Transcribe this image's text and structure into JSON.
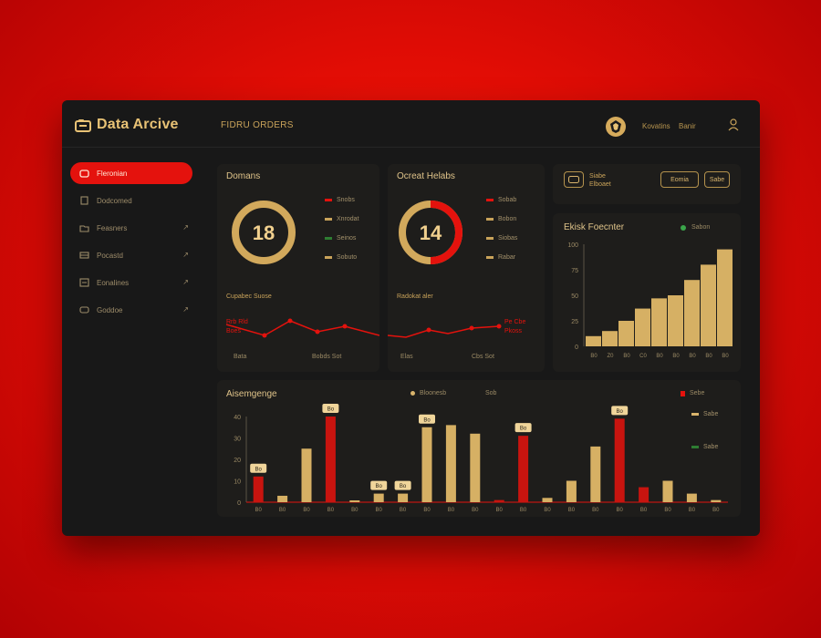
{
  "app": {
    "name": "Data Arcive",
    "header_title": "FIDRU ORDERS"
  },
  "header": {
    "user": "Kovatins",
    "user_role": "Banir"
  },
  "sidebar": {
    "items": [
      {
        "label": "Fleronian",
        "icon": "home-icon",
        "active": true
      },
      {
        "label": "Dodcomed",
        "icon": "document-icon",
        "active": false
      },
      {
        "label": "Feasners",
        "icon": "folder-icon",
        "active": false
      },
      {
        "label": "Pocastd",
        "icon": "layers-icon",
        "active": false
      },
      {
        "label": "Eonalines",
        "icon": "archive-icon",
        "active": false
      },
      {
        "label": "Goddoe",
        "icon": "grid-icon",
        "active": false
      }
    ]
  },
  "card1": {
    "title": "Domans",
    "donut_value": "18",
    "legend": [
      {
        "label": "Snobs",
        "color": "#e4120d"
      },
      {
        "label": "Xnrodat",
        "color": "#c9a35a"
      },
      {
        "label": "Seinos",
        "color": "#2e7d32"
      },
      {
        "label": "Sobuto",
        "color": "#c9a35a"
      }
    ],
    "subtitle": "Cupabec Suose",
    "line_label_top": "Rrb Rld",
    "line_label_mid": "Boes",
    "footer_left": "Bata",
    "footer_right": "Bobds Sot"
  },
  "card2": {
    "title": "Ocreat Helabs",
    "donut_value": "14",
    "legend": [
      {
        "label": "Sobab",
        "color": "#e4120d"
      },
      {
        "label": "Bobon",
        "color": "#c9a35a"
      },
      {
        "label": "Siobas",
        "color": "#c9a35a"
      },
      {
        "label": "Rabar",
        "color": "#c9a35a"
      }
    ],
    "subtitle": "Radokat aler",
    "line_label_top": "Pe Cbe",
    "line_label_mid": "Pkoss",
    "footer_left": "Elas",
    "footer_right": "Cbs Sot"
  },
  "filter_bar": {
    "select_label": "Siabe",
    "select_sub": "Elboaet",
    "button1": "Eomia",
    "button2": "Sabe"
  },
  "bar_card": {
    "title": "Ekisk Foecnter",
    "legend_label": "Sabon",
    "chart_data": {
      "type": "bar",
      "categories": [
        "B0",
        "Z0",
        "B0",
        "C0",
        "B0",
        "B0",
        "B0",
        "B0",
        "B0"
      ],
      "values": [
        10,
        15,
        25,
        37,
        47,
        50,
        65,
        80,
        95
      ],
      "ylim": [
        0,
        100
      ],
      "y_ticks": [
        "0",
        "25",
        "50",
        "75",
        "100"
      ]
    }
  },
  "bottom_card": {
    "title": "Aisemgenge",
    "legend_top": "Bloonesb",
    "legend_top2": "Sob",
    "legend_right": "Sebe",
    "legend_r1": "Sabe",
    "legend_r2": "Sabe",
    "chart_data": {
      "type": "bar",
      "categories": [
        "B0",
        "B0",
        "B0",
        "B0",
        "B0",
        "B0",
        "B0",
        "B0",
        "B0",
        "B0",
        "B0",
        "B0",
        "B0",
        "B0",
        "B0",
        "B0",
        "B0",
        "B0",
        "B0",
        "B0"
      ],
      "values": [
        12,
        3,
        25,
        40,
        0,
        4,
        4,
        35,
        36,
        32,
        1,
        31,
        2,
        10,
        26,
        39,
        7,
        10,
        4,
        1
      ],
      "colors": [
        "red",
        "gold",
        "gold",
        "red",
        "gold",
        "gold",
        "gold",
        "gold",
        "gold",
        "gold",
        "red",
        "red",
        "gold",
        "gold",
        "gold",
        "red",
        "red",
        "gold",
        "gold",
        "gold"
      ],
      "labels": [
        "Bo",
        "",
        "",
        "Bo",
        "",
        "Bo",
        "Bo",
        "Bo",
        "",
        "",
        "",
        "Bo",
        "",
        "",
        "",
        "Bo",
        "",
        "",
        "",
        ""
      ],
      "ylim": [
        0,
        40
      ],
      "y_ticks": [
        "0",
        "10",
        "20",
        "30",
        "40"
      ]
    }
  },
  "colors": {
    "accent": "#e4120d",
    "gold": "#c9a35a",
    "panel": "#1e1d1b",
    "bg": "#181818"
  }
}
